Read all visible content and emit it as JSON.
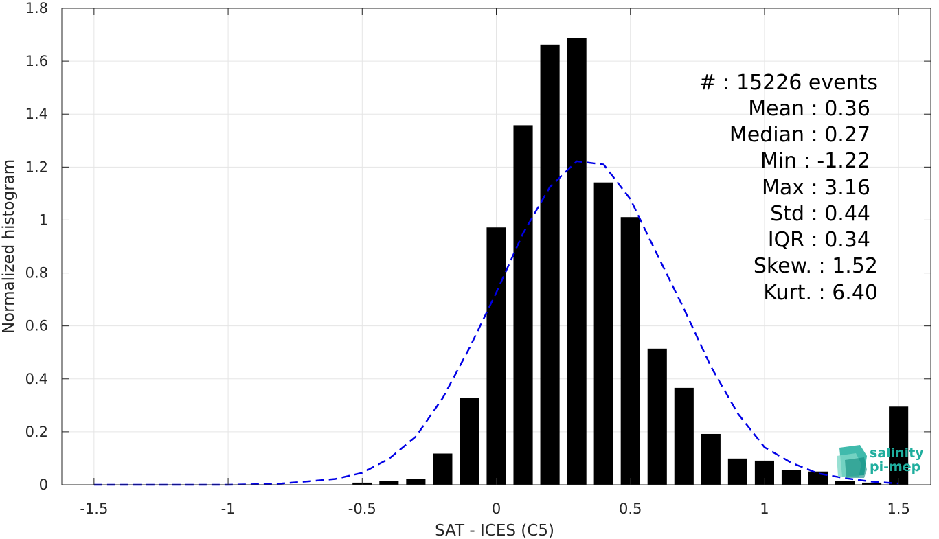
{
  "chart_data": {
    "type": "bar",
    "xlabel": "SAT - ICES (C5)",
    "ylabel": "Normalized histogram",
    "xlim": [
      -1.62,
      1.62
    ],
    "ylim": [
      0,
      1.8
    ],
    "grid": true,
    "xticks": [
      -1.5,
      -1,
      -0.5,
      0,
      0.5,
      1,
      1.5
    ],
    "xtick_labels": [
      "-1.5",
      "-1",
      "-0.5",
      "0",
      "0.5",
      "1",
      "1.5"
    ],
    "yticks": [
      0,
      0.2,
      0.4,
      0.6,
      0.8,
      1,
      1.2,
      1.4,
      1.6,
      1.8
    ],
    "ytick_labels": [
      "0",
      "0.2",
      "0.4",
      "0.6",
      "0.8",
      "1",
      "1.2",
      "1.4",
      "1.6",
      "1.8"
    ],
    "bar_color": "#000000",
    "bar_width": 0.072,
    "bars": {
      "x": [
        -1.5,
        -1.4,
        -1.3,
        -1.2,
        -1.1,
        -1.0,
        -0.9,
        -0.8,
        -0.7,
        -0.6,
        -0.5,
        -0.4,
        -0.3,
        -0.2,
        -0.1,
        0.0,
        0.1,
        0.2,
        0.3,
        0.4,
        0.5,
        0.6,
        0.7,
        0.8,
        0.9,
        1.0,
        1.1,
        1.2,
        1.3,
        1.4,
        1.5
      ],
      "values": [
        0,
        0,
        0,
        0,
        0,
        0,
        0,
        0,
        0,
        0,
        0.008,
        0.013,
        0.021,
        0.118,
        0.327,
        0.972,
        1.358,
        1.663,
        1.688,
        1.142,
        1.011,
        0.514,
        0.366,
        0.192,
        0.099,
        0.091,
        0.055,
        0.05,
        0.015,
        0.008,
        0.295
      ]
    },
    "fit_curve": {
      "style": "dashed",
      "color": "#0000e6",
      "x": [
        -1.5,
        -1.4,
        -1.3,
        -1.2,
        -1.1,
        -1.0,
        -0.9,
        -0.8,
        -0.7,
        -0.6,
        -0.5,
        -0.4,
        -0.3,
        -0.2,
        -0.1,
        0.0,
        0.1,
        0.2,
        0.3,
        0.4,
        0.5,
        0.6,
        0.7,
        0.8,
        0.9,
        1.0,
        1.1,
        1.2,
        1.3,
        1.4,
        1.5
      ],
      "values": [
        0.0,
        0.0,
        0.0,
        0.0,
        0.0,
        0.0,
        0.002,
        0.005,
        0.013,
        0.022,
        0.045,
        0.098,
        0.182,
        0.327,
        0.517,
        0.726,
        0.95,
        1.125,
        1.222,
        1.21,
        1.079,
        0.869,
        0.664,
        0.447,
        0.27,
        0.142,
        0.083,
        0.043,
        0.025,
        0.012,
        0.005
      ]
    }
  },
  "stats": {
    "events": "#  : 15226 events",
    "mean": "Mean : 0.36",
    "median": "Median : 0.27",
    "min": "Min : -1.22",
    "max": "Max : 3.16",
    "std": "Std : 0.44",
    "iqr": "IQR : 0.34",
    "skew": "Skew. : 1.52",
    "kurt": "Kurt. : 6.40"
  },
  "logo": {
    "line1": "salinity",
    "line2": "pi-mep",
    "color": "#1fae9e"
  },
  "colors": {
    "axis": "#262626",
    "grid": "#e5e5e5"
  }
}
